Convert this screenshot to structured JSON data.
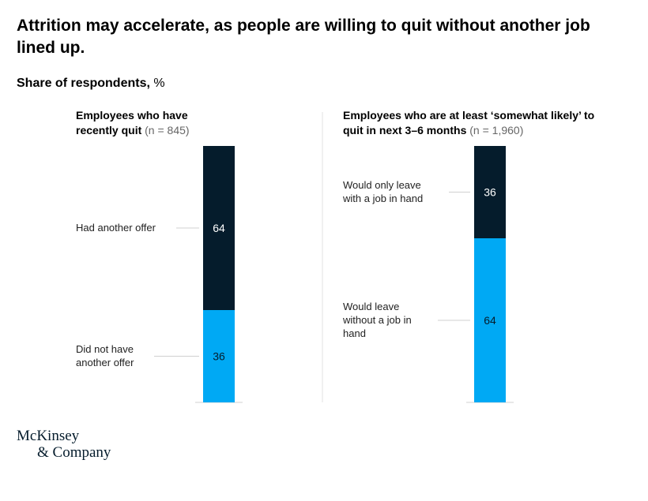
{
  "title": "Attrition may accelerate, as people are willing to quit without another job lined up.",
  "subtitle": "Share of respondents,",
  "unit": "%",
  "brand": {
    "line1": "McKinsey",
    "line2": "& Company"
  },
  "colors": {
    "dark": "#051c2c",
    "blue": "#00a9f4",
    "rule": "#d0d0d0"
  },
  "chart_data": [
    {
      "type": "bar",
      "stacked": true,
      "title": "Employees who have recently quit",
      "n_label": "(n = 845)",
      "ylim": [
        0,
        100
      ],
      "series": [
        {
          "name": "Had another offer",
          "value": 64,
          "color": "#051c2c"
        },
        {
          "name": "Did not have another offer",
          "value": 36,
          "color": "#00a9f4"
        }
      ]
    },
    {
      "type": "bar",
      "stacked": true,
      "title": "Employees who are at least ‘somewhat likely’ to quit in next 3–6 months",
      "n_label": "(n = 1,960)",
      "ylim": [
        0,
        100
      ],
      "series": [
        {
          "name": "Would only leave with a job in hand",
          "value": 36,
          "color": "#051c2c"
        },
        {
          "name": "Would leave without a job in hand",
          "value": 64,
          "color": "#00a9f4"
        }
      ]
    }
  ]
}
